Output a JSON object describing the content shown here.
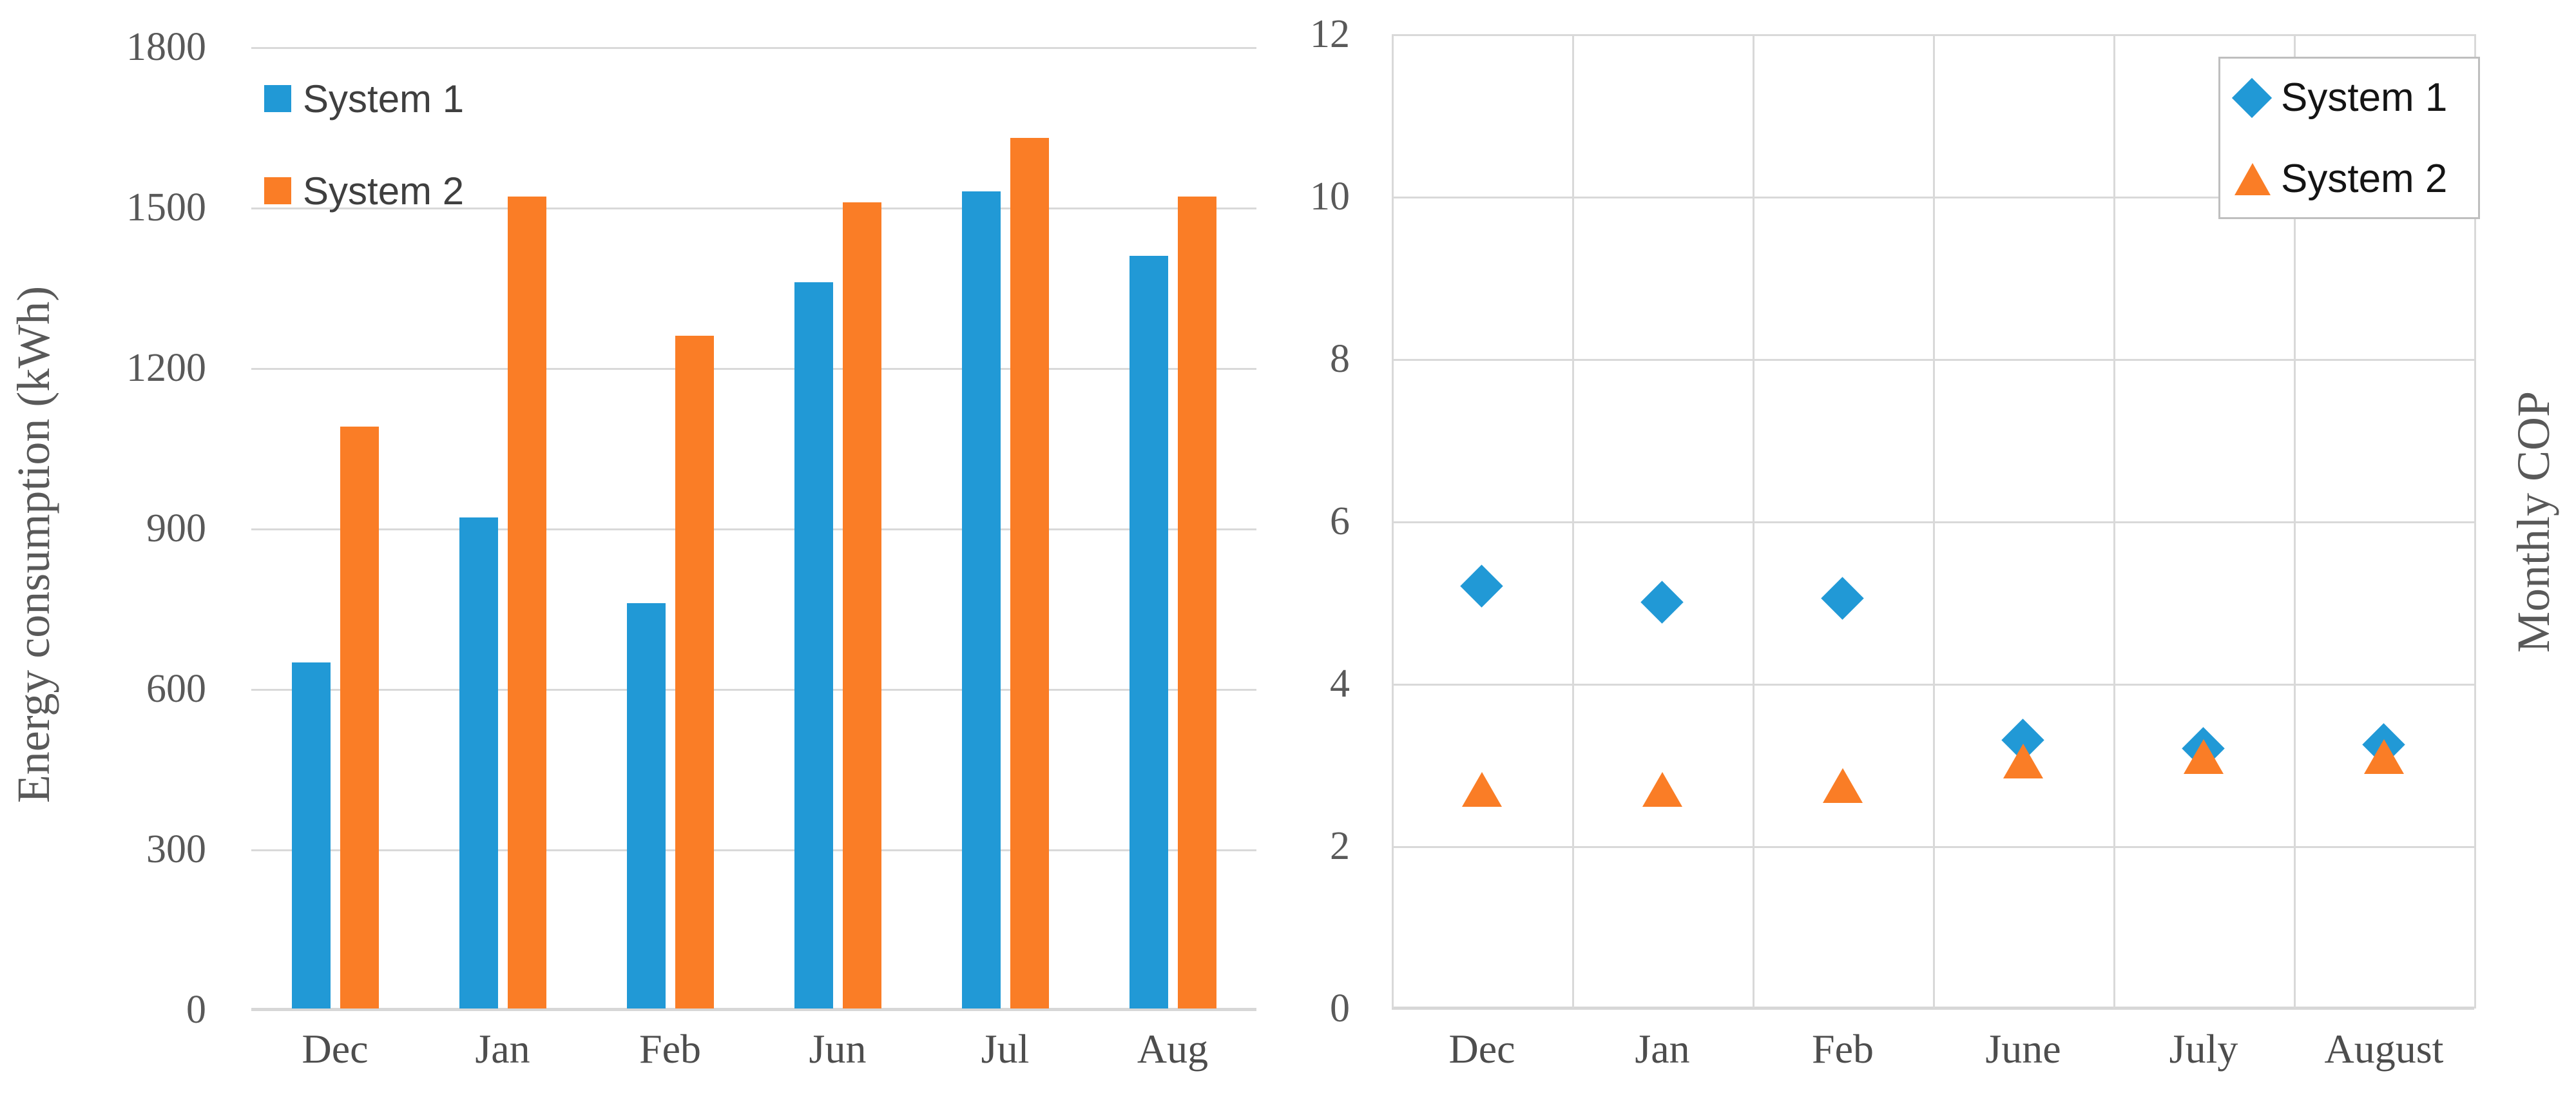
{
  "page": {
    "background": "#FFFFFF"
  },
  "colors": {
    "system1": "#2199D6",
    "system2": "#FA7D26",
    "gridline": "#D9D9D9",
    "axis_line": "#D7D7D7",
    "tick_text": "#595959",
    "category_text": "#4D4D4D",
    "axis_title_text": "#595959",
    "legend_text_left": "#3F3F3F",
    "legend_text_right": "#141414",
    "legend_border": "#BFBFBF"
  },
  "chart_data": [
    {
      "type": "bar",
      "y_axis_label": "Energy consumption (kWh)",
      "categories": [
        "Dec",
        "Jan",
        "Feb",
        "Jun",
        "Jul",
        "Aug"
      ],
      "series": [
        {
          "name": "System 1",
          "color": "#2199D6",
          "values": [
            650,
            920,
            760,
            1360,
            1530,
            1410
          ]
        },
        {
          "name": "System 2",
          "color": "#FA7D26",
          "values": [
            1090,
            1520,
            1260,
            1510,
            1630,
            1520
          ]
        }
      ],
      "ylim": [
        0,
        1800
      ],
      "yticks": [
        0,
        300,
        600,
        900,
        1200,
        1500,
        1800
      ],
      "grid": "horizontal",
      "legend_position": "top-left"
    },
    {
      "type": "scatter",
      "y_axis_label": "Monthly COP",
      "categories": [
        "Dec",
        "Jan",
        "Feb",
        "June",
        "July",
        "August"
      ],
      "series": [
        {
          "name": "System 1",
          "marker": "diamond",
          "color": "#2199D6",
          "values": [
            5.2,
            5.0,
            5.05,
            3.3,
            3.2,
            3.25
          ]
        },
        {
          "name": "System 2",
          "marker": "triangle",
          "color": "#FA7D26",
          "values": [
            2.7,
            2.7,
            2.75,
            3.05,
            3.1,
            3.1
          ]
        }
      ],
      "ylim": [
        0,
        12
      ],
      "yticks": [
        0,
        2,
        4,
        6,
        8,
        10,
        12
      ],
      "grid": "both",
      "legend_position": "top-right",
      "y_axis_title_side": "right"
    }
  ]
}
